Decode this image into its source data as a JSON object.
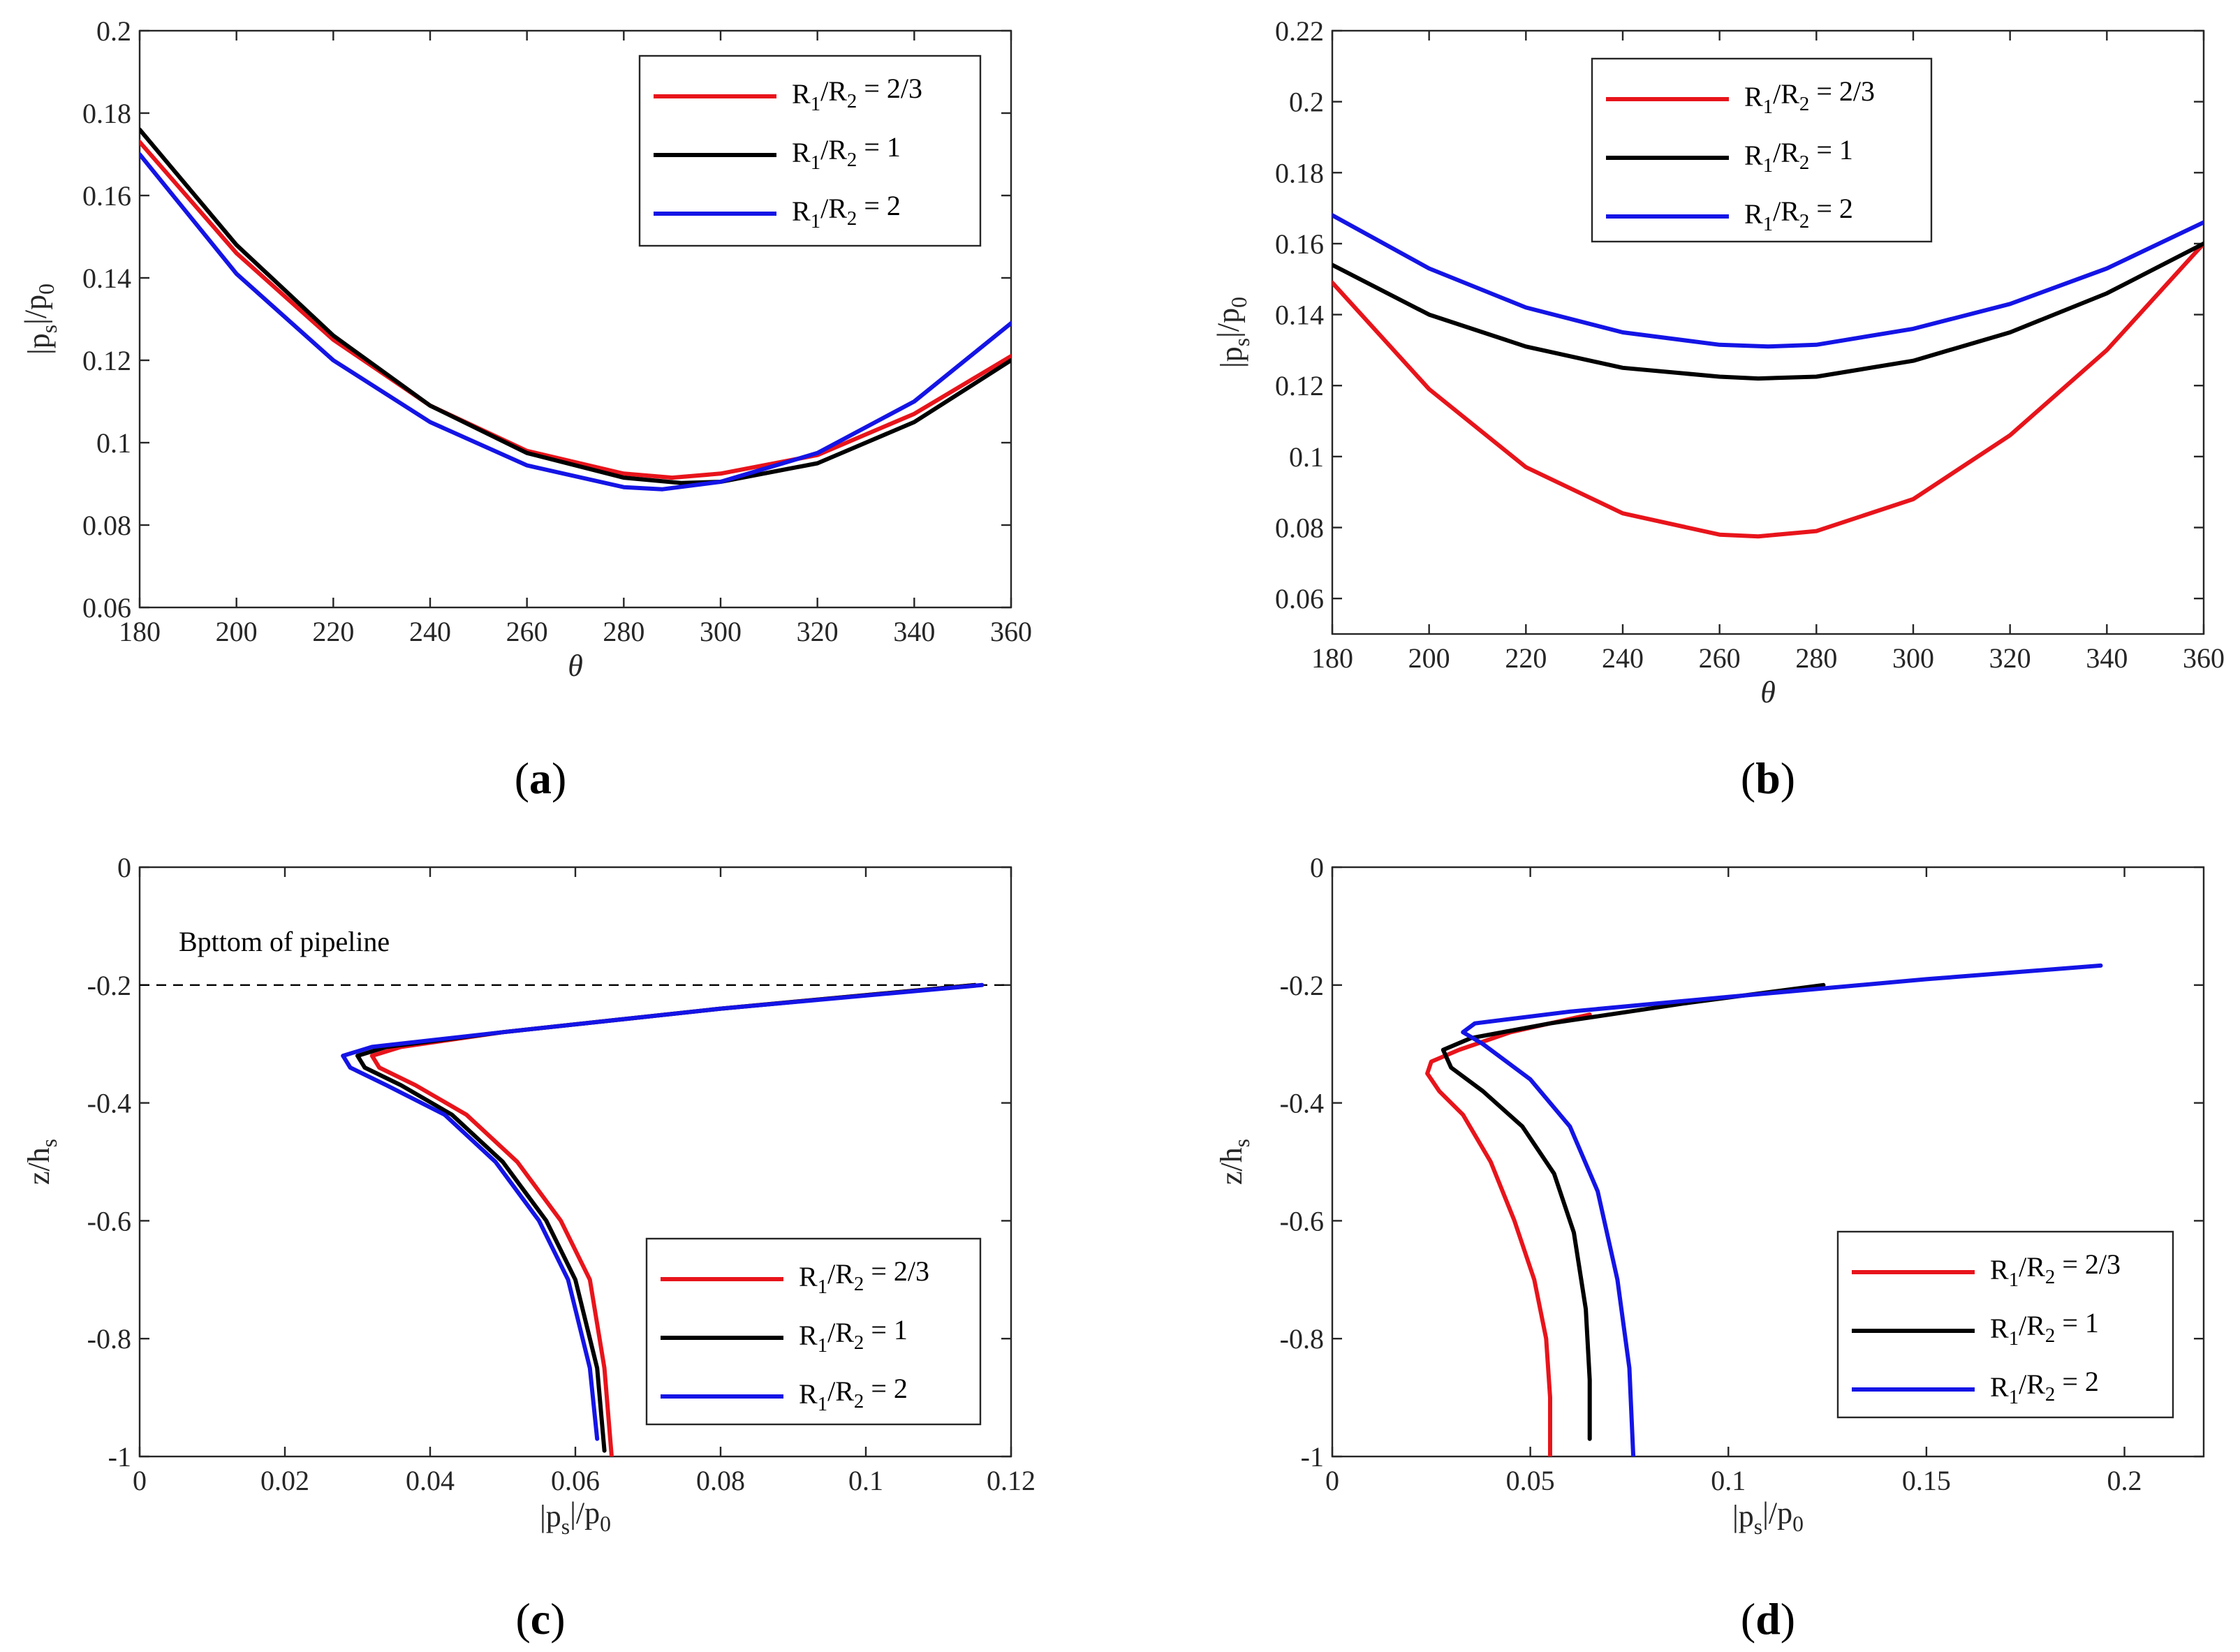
{
  "figure": {
    "legend_labels": [
      "R1/R2 = 2/3",
      "R1/R2 = 1",
      "R1/R2 = 2"
    ]
  },
  "colors": {
    "red": "#e8141b",
    "black": "#000000",
    "blue": "#1414e6",
    "axis": "#262626"
  },
  "chart_data": [
    {
      "id": "a",
      "type": "line",
      "panel_label": "(a)",
      "xlabel": "θ",
      "ylabel": "|ps|/p0",
      "xlim": [
        180,
        360
      ],
      "ylim": [
        0.06,
        0.2
      ],
      "xticks": [
        180,
        200,
        220,
        240,
        260,
        280,
        300,
        320,
        340,
        360
      ],
      "xtick_labels": [
        "180",
        "200",
        "220",
        "240",
        "260",
        "280",
        "300",
        "320",
        "340",
        "360"
      ],
      "yticks": [
        0.06,
        0.08,
        0.1,
        0.12,
        0.14,
        0.16,
        0.18,
        0.2
      ],
      "ytick_labels": [
        "0.06",
        "0.08",
        "0.1",
        "0.12",
        "0.14",
        "0.16",
        "0.18",
        "0.2"
      ],
      "legend": {
        "placement": "top-right",
        "entries": [
          "R1/R2 = 2/3",
          "R1/R2 = 1",
          "R1/R2 = 2"
        ]
      },
      "series": [
        {
          "name": "R1/R2 = 2/3",
          "color": "red",
          "x": [
            180,
            200,
            220,
            240,
            260,
            280,
            290,
            300,
            320,
            340,
            360
          ],
          "y": [
            0.173,
            0.146,
            0.125,
            0.109,
            0.098,
            0.0925,
            0.0915,
            0.0925,
            0.097,
            0.107,
            0.121
          ]
        },
        {
          "name": "R1/R2 = 1",
          "color": "black",
          "x": [
            180,
            200,
            220,
            240,
            260,
            280,
            292,
            300,
            320,
            340,
            360
          ],
          "y": [
            0.176,
            0.148,
            0.126,
            0.109,
            0.0975,
            0.0915,
            0.0902,
            0.0905,
            0.095,
            0.105,
            0.12
          ]
        },
        {
          "name": "R1/R2 = 2",
          "color": "blue",
          "x": [
            180,
            200,
            220,
            240,
            260,
            280,
            288,
            300,
            320,
            340,
            360
          ],
          "y": [
            0.17,
            0.141,
            0.12,
            0.105,
            0.0945,
            0.0892,
            0.0887,
            0.0905,
            0.0975,
            0.11,
            0.129
          ]
        }
      ]
    },
    {
      "id": "b",
      "type": "line",
      "panel_label": "(b)",
      "xlabel": "θ",
      "ylabel": "|ps|/p0",
      "xlim": [
        180,
        360
      ],
      "ylim": [
        0.05,
        0.22
      ],
      "xticks": [
        180,
        200,
        220,
        240,
        260,
        280,
        300,
        320,
        340,
        360
      ],
      "xtick_labels": [
        "180",
        "200",
        "220",
        "240",
        "260",
        "280",
        "300",
        "320",
        "340",
        "360"
      ],
      "yticks": [
        0.06,
        0.08,
        0.1,
        0.12,
        0.14,
        0.16,
        0.18,
        0.2,
        0.22
      ],
      "ytick_labels": [
        "0.06",
        "0.08",
        "0.1",
        "0.12",
        "0.14",
        "0.16",
        "0.18",
        "0.2",
        "0.22"
      ],
      "legend": {
        "placement": "top-left",
        "entries": [
          "R1/R2 = 2/3",
          "R1/R2 = 1",
          "R1/R2 = 2"
        ]
      },
      "series": [
        {
          "name": "R1/R2 = 2/3",
          "color": "red",
          "x": [
            180,
            200,
            220,
            240,
            260,
            268,
            280,
            300,
            320,
            340,
            360
          ],
          "y": [
            0.149,
            0.119,
            0.097,
            0.084,
            0.078,
            0.0775,
            0.079,
            0.088,
            0.106,
            0.13,
            0.16
          ]
        },
        {
          "name": "R1/R2 = 1",
          "color": "black",
          "x": [
            180,
            200,
            220,
            240,
            260,
            268,
            280,
            300,
            320,
            340,
            360
          ],
          "y": [
            0.154,
            0.14,
            0.131,
            0.125,
            0.1225,
            0.122,
            0.1225,
            0.127,
            0.135,
            0.146,
            0.16
          ]
        },
        {
          "name": "R1/R2 = 2",
          "color": "blue",
          "x": [
            180,
            200,
            220,
            240,
            260,
            270,
            280,
            300,
            320,
            340,
            360
          ],
          "y": [
            0.168,
            0.153,
            0.142,
            0.135,
            0.1315,
            0.131,
            0.1315,
            0.136,
            0.143,
            0.153,
            0.166
          ]
        }
      ]
    },
    {
      "id": "c",
      "type": "line",
      "panel_label": "(c)",
      "xlabel": "|ps|/p0",
      "ylabel": "z/hs",
      "xlim": [
        0,
        0.12
      ],
      "ylim": [
        -1,
        0
      ],
      "xticks": [
        0,
        0.02,
        0.04,
        0.06,
        0.08,
        0.1,
        0.12
      ],
      "xtick_labels": [
        "0",
        "0.02",
        "0.04",
        "0.06",
        "0.08",
        "0.1",
        "0.12"
      ],
      "yticks": [
        -1,
        -0.8,
        -0.6,
        -0.4,
        -0.2,
        0
      ],
      "ytick_labels": [
        "-1",
        "-0.8",
        "-0.6",
        "-0.4",
        "-0.2",
        "0"
      ],
      "legend": {
        "placement": "bottom-right",
        "entries": [
          "R1/R2 = 2/3",
          "R1/R2 = 1",
          "R1/R2 = 2"
        ]
      },
      "annotation": {
        "text": "Bpttom of pipeline",
        "reference_line_y": -0.2
      },
      "series": [
        {
          "name": "R1/R2 = 2/3",
          "color": "red",
          "x": [
            0.115,
            0.08,
            0.05,
            0.036,
            0.032,
            0.033,
            0.038,
            0.045,
            0.052,
            0.058,
            0.062,
            0.064,
            0.065
          ],
          "y": [
            -0.2,
            -0.24,
            -0.28,
            -0.305,
            -0.32,
            -0.34,
            -0.37,
            -0.42,
            -0.5,
            -0.6,
            -0.7,
            -0.85,
            -1.0
          ]
        },
        {
          "name": "R1/R2 = 1",
          "color": "black",
          "x": [
            0.115,
            0.08,
            0.05,
            0.034,
            0.03,
            0.031,
            0.036,
            0.043,
            0.05,
            0.056,
            0.06,
            0.063,
            0.064
          ],
          "y": [
            -0.2,
            -0.24,
            -0.28,
            -0.305,
            -0.32,
            -0.34,
            -0.37,
            -0.42,
            -0.5,
            -0.6,
            -0.7,
            -0.85,
            -0.99
          ]
        },
        {
          "name": "R1/R2 = 2",
          "color": "blue",
          "x": [
            0.116,
            0.08,
            0.05,
            0.032,
            0.028,
            0.029,
            0.034,
            0.042,
            0.049,
            0.055,
            0.059,
            0.062,
            0.063
          ],
          "y": [
            -0.2,
            -0.24,
            -0.28,
            -0.305,
            -0.32,
            -0.34,
            -0.37,
            -0.42,
            -0.5,
            -0.6,
            -0.7,
            -0.85,
            -0.97
          ]
        }
      ]
    },
    {
      "id": "d",
      "type": "line",
      "panel_label": "(d)",
      "xlabel": "|ps|/p0",
      "ylabel": "z/hs",
      "xlim": [
        0,
        0.22
      ],
      "ylim": [
        -1,
        0
      ],
      "xticks": [
        0,
        0.05,
        0.1,
        0.15,
        0.2
      ],
      "xtick_labels": [
        "0",
        "0.05",
        "0.1",
        "0.15",
        "0.2"
      ],
      "yticks": [
        -1,
        -0.8,
        -0.6,
        -0.4,
        -0.2,
        0
      ],
      "ytick_labels": [
        "-1",
        "-0.8",
        "-0.6",
        "-0.4",
        "-0.2",
        "0"
      ],
      "legend": {
        "placement": "bottom-right",
        "entries": [
          "R1/R2 = 2/3",
          "R1/R2 = 1",
          "R1/R2 = 2"
        ]
      },
      "series": [
        {
          "name": "R1/R2 = 2/3",
          "color": "red",
          "x": [
            0.065,
            0.045,
            0.032,
            0.025,
            0.024,
            0.027,
            0.033,
            0.04,
            0.046,
            0.051,
            0.054,
            0.055,
            0.055
          ],
          "y": [
            -0.25,
            -0.28,
            -0.31,
            -0.33,
            -0.35,
            -0.38,
            -0.42,
            -0.5,
            -0.6,
            -0.7,
            -0.8,
            -0.9,
            -1.0
          ]
        },
        {
          "name": "R1/R2 = 1",
          "color": "black",
          "x": [
            0.124,
            0.09,
            0.055,
            0.035,
            0.028,
            0.03,
            0.038,
            0.048,
            0.056,
            0.061,
            0.064,
            0.065,
            0.065
          ],
          "y": [
            -0.2,
            -0.23,
            -0.265,
            -0.29,
            -0.31,
            -0.34,
            -0.38,
            -0.44,
            -0.52,
            -0.62,
            -0.75,
            -0.87,
            -0.97
          ]
        },
        {
          "name": "R1/R2 = 2",
          "color": "blue",
          "x": [
            0.194,
            0.15,
            0.1,
            0.06,
            0.036,
            0.033,
            0.038,
            0.05,
            0.06,
            0.067,
            0.072,
            0.075,
            0.076
          ],
          "y": [
            -0.167,
            -0.19,
            -0.22,
            -0.245,
            -0.265,
            -0.28,
            -0.3,
            -0.36,
            -0.44,
            -0.55,
            -0.7,
            -0.85,
            -1.0
          ]
        }
      ]
    }
  ]
}
